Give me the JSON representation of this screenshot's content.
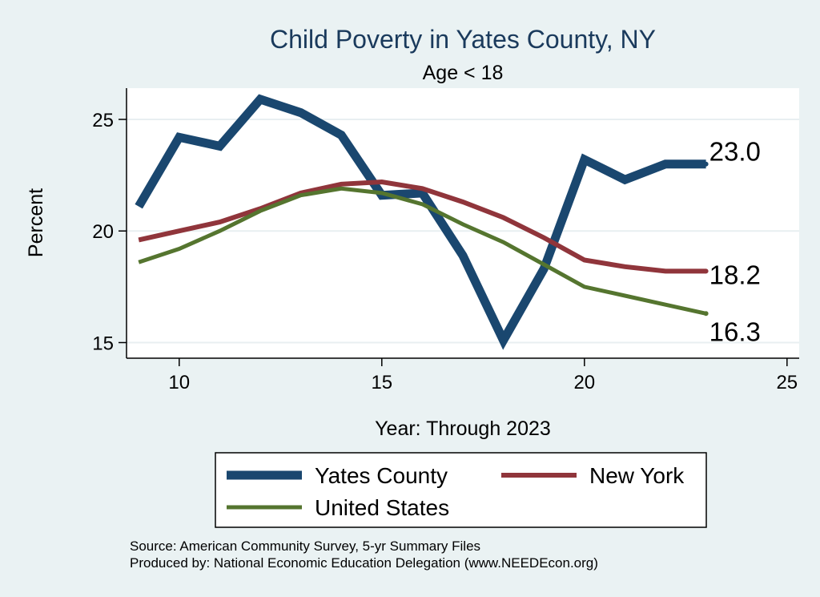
{
  "chart_data": {
    "type": "line",
    "title": "Child Poverty in Yates County, NY",
    "subtitle": "Age < 18",
    "xlabel": "Year: Through 2023",
    "ylabel": "Percent",
    "xlim": [
      8.7,
      25.3
    ],
    "ylim": [
      14.3,
      26.4
    ],
    "x_ticks": [
      10,
      15,
      20,
      25
    ],
    "y_ticks": [
      15,
      20,
      25
    ],
    "x": [
      9,
      10,
      11,
      12,
      13,
      14,
      15,
      16,
      17,
      18,
      19,
      20,
      21,
      22,
      23
    ],
    "series": [
      {
        "name": "Yates County",
        "color": "#1a476f",
        "values": [
          21.1,
          24.2,
          23.8,
          25.9,
          25.3,
          24.3,
          21.6,
          21.7,
          18.9,
          15.1,
          18.3,
          23.2,
          22.3,
          23.0,
          23.0
        ],
        "end_label": "23.0"
      },
      {
        "name": "New York",
        "color": "#90353b",
        "values": [
          19.6,
          20.0,
          20.4,
          21.0,
          21.7,
          22.1,
          22.2,
          21.9,
          21.3,
          20.6,
          19.7,
          18.7,
          18.4,
          18.2,
          18.2
        ],
        "end_label": "18.2"
      },
      {
        "name": "United States",
        "color": "#55752f",
        "values": [
          18.6,
          19.2,
          20.0,
          20.9,
          21.6,
          21.9,
          21.7,
          21.2,
          20.3,
          19.5,
          18.5,
          17.5,
          17.1,
          16.7,
          16.3
        ],
        "end_label": "16.3"
      }
    ],
    "legend": [
      "Yates County",
      "New York",
      "United States"
    ],
    "legend_position": "bottom",
    "grid": true
  },
  "notes": {
    "source": "Source: American Community Survey, 5-yr Summary Files",
    "produced_by": "Produced by: National Economic Education Delegation (www.NEEDEcon.org)"
  }
}
